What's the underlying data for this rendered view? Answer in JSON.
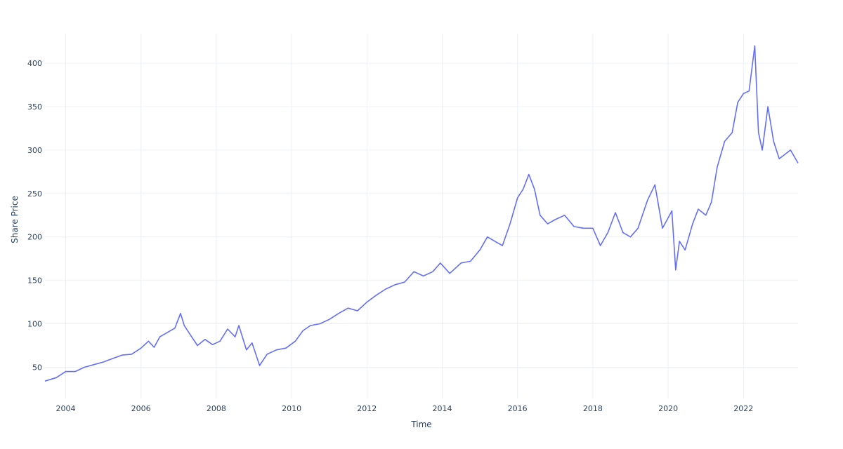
{
  "chart_data": {
    "type": "line",
    "title": "",
    "xlabel": "Time",
    "ylabel": "Share Price",
    "x_ticks": [
      "2004",
      "2006",
      "2008",
      "2010",
      "2012",
      "2014",
      "2016",
      "2018",
      "2020",
      "2022"
    ],
    "y_ticks": [
      50,
      100,
      150,
      200,
      250,
      300,
      350,
      400
    ],
    "xlim": [
      2003.45,
      2023.45
    ],
    "ylim": [
      14,
      434
    ],
    "grid": true,
    "legend": "none",
    "series": [
      {
        "color": "#636efa",
        "x": [
          2003.45,
          2003.75,
          2004.0,
          2004.25,
          2004.5,
          2004.75,
          2005.0,
          2005.25,
          2005.5,
          2005.75,
          2006.0,
          2006.2,
          2006.35,
          2006.5,
          2006.7,
          2006.9,
          2007.05,
          2007.15,
          2007.3,
          2007.5,
          2007.7,
          2007.9,
          2008.1,
          2008.3,
          2008.5,
          2008.6,
          2008.8,
          2008.95,
          2009.15,
          2009.35,
          2009.6,
          2009.85,
          2010.1,
          2010.3,
          2010.5,
          2010.75,
          2011.0,
          2011.25,
          2011.5,
          2011.75,
          2012.0,
          2012.25,
          2012.5,
          2012.75,
          2013.0,
          2013.25,
          2013.5,
          2013.75,
          2013.95,
          2014.2,
          2014.5,
          2014.75,
          2015.0,
          2015.2,
          2015.4,
          2015.6,
          2015.8,
          2016.0,
          2016.15,
          2016.3,
          2016.45,
          2016.6,
          2016.8,
          2017.0,
          2017.25,
          2017.5,
          2017.75,
          2018.0,
          2018.2,
          2018.4,
          2018.6,
          2018.8,
          2019.0,
          2019.2,
          2019.45,
          2019.65,
          2019.85,
          2020.0,
          2020.1,
          2020.2,
          2020.3,
          2020.45,
          2020.65,
          2020.8,
          2021.0,
          2021.15,
          2021.3,
          2021.5,
          2021.7,
          2021.85,
          2022.0,
          2022.15,
          2022.3,
          2022.4,
          2022.5,
          2022.65,
          2022.8,
          2022.95,
          2023.1,
          2023.25,
          2023.45
        ],
        "y": [
          34,
          38,
          45,
          45,
          50,
          53,
          56,
          60,
          64,
          65,
          72,
          80,
          73,
          85,
          90,
          95,
          112,
          98,
          88,
          75,
          82,
          76,
          80,
          94,
          85,
          98,
          70,
          78,
          52,
          65,
          70,
          72,
          80,
          92,
          98,
          100,
          105,
          112,
          118,
          115,
          125,
          133,
          140,
          145,
          148,
          160,
          155,
          160,
          170,
          158,
          170,
          172,
          185,
          200,
          195,
          190,
          215,
          245,
          255,
          272,
          255,
          225,
          215,
          220,
          225,
          212,
          210,
          210,
          190,
          205,
          228,
          205,
          200,
          210,
          242,
          260,
          210,
          222,
          230,
          162,
          195,
          185,
          215,
          232,
          225,
          240,
          280,
          310,
          320,
          355,
          365,
          368,
          420,
          320,
          300,
          350,
          310,
          290,
          295,
          300,
          285
        ]
      }
    ]
  }
}
